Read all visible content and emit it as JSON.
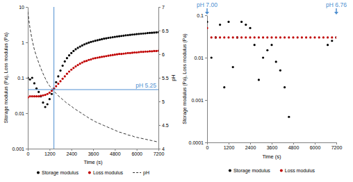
{
  "chart_data": [
    {
      "type": "scatter",
      "log": "y",
      "legend": "bottom",
      "xlabel": "Time (s)",
      "ylabel": "Storage modulus (Pa), Loss modulus (Pa)",
      "y2label": "pH",
      "x": [
        0,
        120,
        240,
        360,
        480,
        600,
        720,
        840,
        960,
        1080,
        1200,
        1320,
        1440,
        1560,
        1680,
        1800,
        1920,
        2040,
        2160,
        2280,
        2400,
        2520,
        2640,
        2760,
        2880,
        3000,
        3120,
        3240,
        3360,
        3480,
        3600,
        3720,
        3840,
        3960,
        4080,
        4200,
        4320,
        4440,
        4560,
        4680,
        4800,
        4920,
        5040,
        5160,
        5280,
        5400,
        5520,
        5640,
        5760,
        5880,
        6000,
        6120,
        6240,
        6360,
        6480,
        6600,
        6720,
        6840,
        6960,
        7080,
        7200
      ],
      "xlim": [
        0,
        7200
      ],
      "xticks": [
        0,
        1200,
        2400,
        3600,
        4800,
        6000,
        7200
      ],
      "ylim": [
        0.001,
        10
      ],
      "yticks": [
        0.001,
        0.01,
        0.1,
        1,
        10
      ],
      "y2lim": [
        4,
        7
      ],
      "y2ticks": [
        4,
        4.5,
        5,
        5.5,
        6,
        6.5,
        7
      ],
      "series": [
        {
          "name": "Storage modulus",
          "color": "#000000",
          "marker": "circle",
          "values": [
            0.1,
            0.09,
            0.1,
            0.07,
            0.05,
            0.04,
            0.03,
            0.02,
            0.015,
            0.018,
            0.025,
            0.035,
            0.05,
            0.075,
            0.11,
            0.16,
            0.22,
            0.29,
            0.36,
            0.43,
            0.5,
            0.57,
            0.64,
            0.7,
            0.76,
            0.82,
            0.88,
            0.93,
            0.98,
            1.03,
            1.07,
            1.11,
            1.15,
            1.19,
            1.23,
            1.27,
            1.3,
            1.34,
            1.37,
            1.4,
            1.43,
            1.46,
            1.49,
            1.52,
            1.55,
            1.58,
            1.6,
            1.63,
            1.66,
            1.68,
            1.71,
            1.73,
            1.76,
            1.78,
            1.8,
            1.83,
            1.85,
            1.87,
            1.89,
            1.91,
            1.93
          ]
        },
        {
          "name": "Loss modulus",
          "color": "#c00000",
          "marker": "circle",
          "values": [
            0.028,
            0.03,
            0.03,
            0.03,
            0.03,
            0.03,
            0.031,
            0.032,
            0.033,
            0.035,
            0.038,
            0.043,
            0.05,
            0.058,
            0.068,
            0.08,
            0.094,
            0.11,
            0.13,
            0.15,
            0.17,
            0.19,
            0.21,
            0.23,
            0.25,
            0.27,
            0.29,
            0.3,
            0.32,
            0.33,
            0.35,
            0.36,
            0.37,
            0.38,
            0.39,
            0.4,
            0.41,
            0.42,
            0.43,
            0.44,
            0.45,
            0.46,
            0.47,
            0.47,
            0.48,
            0.49,
            0.5,
            0.5,
            0.51,
            0.52,
            0.52,
            0.53,
            0.54,
            0.54,
            0.55,
            0.55,
            0.56,
            0.56,
            0.57,
            0.57,
            0.58
          ]
        },
        {
          "name": "pH",
          "type": "line",
          "axis": "y2",
          "color": "#333333",
          "line_style": "dashed",
          "values": [
            6.9,
            6.55,
            6.3,
            6.1,
            5.95,
            5.82,
            5.7,
            5.59,
            5.49,
            5.4,
            5.33,
            5.27,
            5.22,
            5.17,
            5.12,
            5.08,
            5.04,
            5.0,
            4.96,
            4.93,
            4.9,
            4.86,
            4.83,
            4.8,
            4.77,
            4.74,
            4.71,
            4.68,
            4.65,
            4.62,
            4.6,
            4.57,
            4.55,
            4.53,
            4.51,
            4.49,
            4.47,
            4.45,
            4.43,
            4.41,
            4.39,
            4.37,
            4.35,
            4.34,
            4.32,
            4.31,
            4.29,
            4.28,
            4.27,
            4.25,
            4.24,
            4.23,
            4.22,
            4.21,
            4.2,
            4.19,
            4.18,
            4.17,
            4.16,
            4.15,
            4.14
          ]
        }
      ],
      "annotations": [
        {
          "text": "pH 5.25",
          "x": 1440,
          "y": 5.25,
          "axis": "y2"
        }
      ]
    },
    {
      "type": "scatter",
      "log": "y",
      "legend": "bottom",
      "xlabel": "Time (s)",
      "ylabel": "Storage modulus (Pa), Loss modulus (Pa)",
      "x": [
        0,
        240,
        480,
        720,
        960,
        1200,
        1440,
        1680,
        1920,
        2160,
        2400,
        2640,
        2880,
        3120,
        3360,
        3600,
        3840,
        4080,
        4320,
        4560,
        4800,
        5040,
        5280,
        5520,
        5760,
        6000,
        6240,
        6480,
        6720,
        6960,
        7200
      ],
      "xlim": [
        0,
        7200
      ],
      "xticks": [
        0,
        1200,
        2400,
        3600,
        4800,
        6000,
        7200
      ],
      "ylim": [
        0.0001,
        0.1
      ],
      "yticks": [
        0.0001,
        0.001,
        0.01,
        0.1
      ],
      "series": [
        {
          "name": "Storage modulus",
          "color": "#000000",
          "marker": "circle",
          "values": [
            0.07,
            0.01,
            0.03,
            0.06,
            0.002,
            0.07,
            0.006,
            0.03,
            0.07,
            0.06,
            0.05,
            0.02,
            0.003,
            0.01,
            0.015,
            0.02,
            0.008,
            0.005,
            0.002,
            0.0004,
            null,
            null,
            null,
            null,
            null,
            null,
            null,
            null,
            0.02,
            0.025,
            0.03
          ]
        },
        {
          "name": "Loss modulus",
          "color": "#c00000",
          "marker": "circle",
          "values": [
            0.05,
            0.03,
            0.03,
            0.03,
            0.03,
            0.03,
            0.03,
            0.03,
            0.03,
            0.03,
            0.03,
            0.03,
            0.03,
            0.03,
            0.03,
            0.03,
            0.03,
            0.03,
            0.03,
            0.03,
            0.03,
            0.03,
            0.03,
            0.03,
            0.03,
            0.03,
            0.03,
            0.03,
            0.03,
            0.03,
            0.03
          ]
        }
      ],
      "annotations": [
        {
          "text": "pH 7.00",
          "x": 0
        },
        {
          "text": "pH 6.76",
          "x": 7200
        }
      ]
    }
  ]
}
